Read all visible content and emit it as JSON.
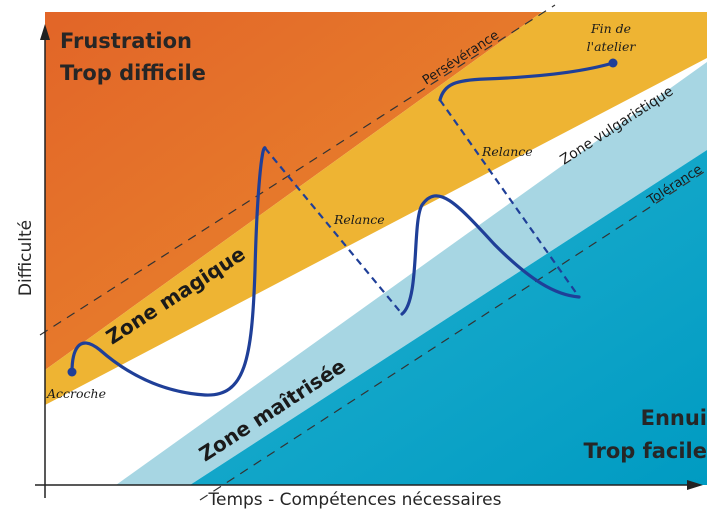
{
  "zones": {
    "frustration": {
      "line1": "Frustration",
      "line2": "Trop difficile",
      "color": "#E46A2A"
    },
    "magique": {
      "label": "Zone magique",
      "color": "#EDB232"
    },
    "maitrisee": {
      "label": "Zone maîtrisée"
    },
    "ennui": {
      "line1": "Ennui",
      "line2": "Trop facile",
      "color": "#009DC4"
    },
    "vulgaristique": {
      "label": "Zone vulgaristique",
      "color": "#A8D5E2"
    }
  },
  "boundaries": {
    "perseverance": "Persévérance",
    "tolerance": "Tolérance"
  },
  "axes": {
    "x_label": "Temps - Compétences nécessaires",
    "y_label": "Difficulté"
  },
  "annotations": {
    "accroche": "Accroche",
    "fin_line1": "Fin de",
    "fin_line2": "l'atelier",
    "relance_1": "Relance",
    "relance_2": "Relance"
  },
  "colors": {
    "curve": "#1F3F98",
    "axis": "#222222"
  }
}
